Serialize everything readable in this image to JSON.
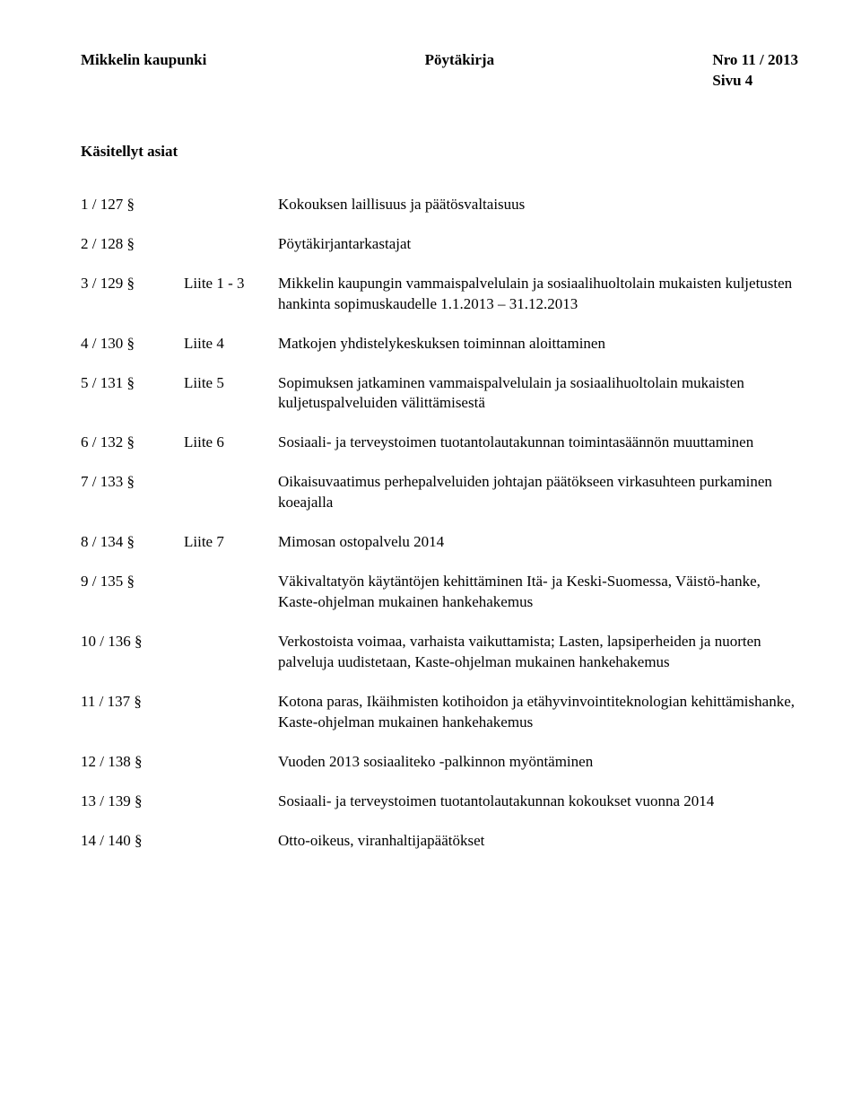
{
  "header": {
    "org": "Mikkelin kaupunki",
    "doctype": "Pöytäkirja",
    "docnum": "Nro  11 / 2013",
    "page": "Sivu  4"
  },
  "section_title": "Käsitellyt asiat",
  "items": [
    {
      "num": "1 / 127 §",
      "liite": "",
      "text": "Kokouksen laillisuus ja päätösvaltaisuus"
    },
    {
      "num": "2 / 128 §",
      "liite": "",
      "text": "Pöytäkirjantarkastajat"
    },
    {
      "num": "3 / 129 §",
      "liite": "Liite 1 - 3",
      "text": "Mikkelin kaupungin vammaispalvelulain ja sosiaalihuoltolain mukaisten kuljetusten hankinta sopimuskaudelle 1.1.2013 – 31.12.2013"
    },
    {
      "num": "4 / 130 §",
      "liite": "Liite 4",
      "text": "Matkojen yhdistelykeskuksen toiminnan aloittaminen"
    },
    {
      "num": "5 / 131 §",
      "liite": "Liite 5",
      "text": "Sopimuksen jatkaminen vammaispalvelulain ja sosiaalihuoltolain mukaisten kuljetuspalveluiden välittämisestä"
    },
    {
      "num": "6 / 132 §",
      "liite": "Liite 6",
      "text": "Sosiaali- ja terveystoimen tuotantolautakunnan toimintasäännön muuttaminen"
    },
    {
      "num": "7 / 133 §",
      "liite": "",
      "text": "Oikaisuvaatimus perhepalveluiden johtajan päätökseen virkasuhteen purkaminen koeajalla"
    },
    {
      "num": "8 / 134 §",
      "liite": "Liite 7",
      "text": "Mimosan ostopalvelu 2014"
    },
    {
      "num": "9 / 135 §",
      "liite": "",
      "text": "Väkivaltatyön käytäntöjen kehittäminen Itä- ja Keski-Suomessa, Väistö-hanke, Kaste-ohjelman mukainen hankehakemus"
    },
    {
      "num": "10 / 136 §",
      "liite": "",
      "text": "Verkostoista voimaa, varhaista vaikuttamista; Lasten, lapsiperheiden ja nuorten palveluja uudistetaan, Kaste-ohjelman mukainen hankehakemus"
    },
    {
      "num": "11 / 137 §",
      "liite": "",
      "text": "Kotona paras, Ikäihmisten kotihoidon ja etähyvinvointiteknologian kehittämishanke, Kaste-ohjelman mukainen hankehakemus"
    },
    {
      "num": "12 / 138 §",
      "liite": "",
      "text": "Vuoden 2013 sosiaaliteko -palkinnon myöntäminen"
    },
    {
      "num": "13 / 139 §",
      "liite": "",
      "text": "Sosiaali- ja terveystoimen tuotantolautakunnan kokoukset vuonna 2014"
    },
    {
      "num": "14 / 140 §",
      "liite": "",
      "text": "Otto-oikeus, viranhaltijapäätökset"
    }
  ]
}
